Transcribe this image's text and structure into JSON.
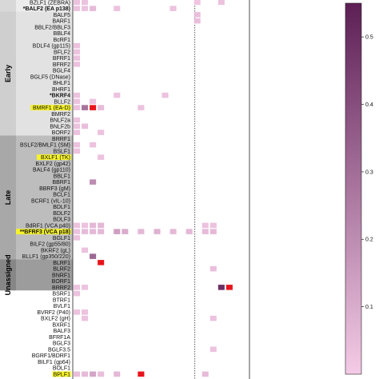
{
  "chart_data": {
    "type": "heatmap",
    "groups": [
      {
        "name": "",
        "from": 0,
        "to": 2
      },
      {
        "name": "Early",
        "from": 2,
        "to": 22
      },
      {
        "name": "Late",
        "from": 22,
        "to": 42
      },
      {
        "name": "Unassigned",
        "from": 42,
        "to": 47
      }
    ],
    "rows": [
      "BZLF1 (ZEBRA)",
      "*BALF2 (EA p138)",
      "BALF5",
      "BARF1",
      "BBLF2/BBLF3",
      "BBLF4",
      "BcRF1",
      "BDLF4 (gp115)",
      "BFLF2",
      "BFRF1",
      "BFRF2",
      "BGLF4",
      "BGLF5 (DNase)",
      "BHLF1",
      "BHRF1",
      "*BKRF4",
      "BLLF2",
      "BMRF1 (EA-D)",
      "BMRF2",
      "BNLF2a",
      "BNLF2b",
      "BORF2",
      "BRRF1",
      "BSLF2/BMLF1 (SM)",
      "BSLF1",
      "BXLF1 (TK)",
      "BXLF2 (gp42)",
      "BALF4 (gp110)",
      "BBLF1",
      "BBRF1",
      "BBRF3 (gM)",
      "BCLF1",
      "BCRF1 (vIL-10)",
      "BDLF1",
      "BDLF2",
      "BDLF3",
      "BdRF1 (VCA p40)",
      "**BFRF3 (VCA p18)",
      "BGLF1",
      "BILF2 (gp55/80)",
      "BKRF2 (gL)",
      "BLLF1 (gp350/220)",
      "BLRF1",
      "BLRF2",
      "BNRF1",
      "BORF1",
      "BRRF2",
      "BSRF1",
      "BTRF1",
      "BVLF1",
      "BVRF2 (P40)",
      "BXLF2 (gH)",
      "BXRF1",
      "BALF3",
      "BFRF1A",
      "BGLF3",
      "BGLF3.5",
      "BGRF1/BDRF1",
      "BILF1 (gp64)",
      "BOLF1",
      "BPLF1"
    ],
    "highlighted_rows": [
      "BMRF1 (EA-D)",
      "BXLF1 (TK)",
      "**BFRF3 (VCA p18)",
      "BPLF1"
    ],
    "bold_rows": [
      "*BALF2 (EA p138)",
      "*BKRF4",
      "**BFRF3 (VCA p18)"
    ],
    "n_columns": 22,
    "separator_after_column": 15,
    "colorbar": {
      "min": 0,
      "max": 0.55,
      "ticks": [
        0.1,
        0.2,
        0.3,
        0.4,
        0.5
      ],
      "low_color": "#f4cbe6",
      "high_color": "#5d1f55",
      "outlier_color": "#e8141b"
    },
    "cells": [
      {
        "row": 0,
        "col": 0,
        "value": 0.03
      },
      {
        "row": 0,
        "col": 1,
        "value": 0.03
      },
      {
        "row": 0,
        "col": 15,
        "value": 0.02
      },
      {
        "row": 0,
        "col": 18,
        "value": 0.03
      },
      {
        "row": 1,
        "col": 0,
        "value": 0.03
      },
      {
        "row": 1,
        "col": 1,
        "value": 0.03
      },
      {
        "row": 1,
        "col": 2,
        "value": 0.05
      },
      {
        "row": 1,
        "col": 5,
        "value": 0.03
      },
      {
        "row": 1,
        "col": 12,
        "value": 0.03
      },
      {
        "row": 2,
        "col": 15,
        "value": 0.04
      },
      {
        "row": 3,
        "col": 15,
        "value": 0.04
      },
      {
        "row": 7,
        "col": 0,
        "value": 0.03
      },
      {
        "row": 8,
        "col": 0,
        "value": 0.03
      },
      {
        "row": 9,
        "col": 0,
        "value": 0.03
      },
      {
        "row": 10,
        "col": 0,
        "value": 0.03
      },
      {
        "row": 15,
        "col": 0,
        "value": 0.03
      },
      {
        "row": 15,
        "col": 5,
        "value": 0.03
      },
      {
        "row": 15,
        "col": 11,
        "value": 0.03
      },
      {
        "row": 16,
        "col": 0,
        "value": 0.03
      },
      {
        "row": 16,
        "col": 2,
        "value": 0.03
      },
      {
        "row": 17,
        "col": 0,
        "value": 0.03
      },
      {
        "row": 17,
        "col": 1,
        "value": 0.28
      },
      {
        "row": 17,
        "col": 2,
        "value": 0.7
      },
      {
        "row": 17,
        "col": 3,
        "value": 0.05
      },
      {
        "row": 17,
        "col": 8,
        "value": 0.03
      },
      {
        "row": 19,
        "col": 0,
        "value": 0.03
      },
      {
        "row": 20,
        "col": 0,
        "value": 0.03
      },
      {
        "row": 20,
        "col": 1,
        "value": 0.04
      },
      {
        "row": 21,
        "col": 0,
        "value": 0.03
      },
      {
        "row": 21,
        "col": 3,
        "value": 0.03
      },
      {
        "row": 23,
        "col": 0,
        "value": 0.03
      },
      {
        "row": 23,
        "col": 2,
        "value": 0.03
      },
      {
        "row": 24,
        "col": 0,
        "value": 0.03
      },
      {
        "row": 25,
        "col": 3,
        "value": 0.03
      },
      {
        "row": 29,
        "col": 2,
        "value": 0.2
      },
      {
        "row": 36,
        "col": 0,
        "value": 0.03
      },
      {
        "row": 36,
        "col": 1,
        "value": 0.03
      },
      {
        "row": 36,
        "col": 2,
        "value": 0.06
      },
      {
        "row": 36,
        "col": 3,
        "value": 0.06
      },
      {
        "row": 36,
        "col": 16,
        "value": 0.03
      },
      {
        "row": 36,
        "col": 17,
        "value": 0.03
      },
      {
        "row": 37,
        "col": 0,
        "value": 0.03
      },
      {
        "row": 37,
        "col": 1,
        "value": 0.05
      },
      {
        "row": 37,
        "col": 2,
        "value": 0.06
      },
      {
        "row": 37,
        "col": 3,
        "value": 0.06
      },
      {
        "row": 37,
        "col": 5,
        "value": 0.14
      },
      {
        "row": 37,
        "col": 6,
        "value": 0.1
      },
      {
        "row": 37,
        "col": 8,
        "value": 0.06
      },
      {
        "row": 37,
        "col": 10,
        "value": 0.08
      },
      {
        "row": 37,
        "col": 12,
        "value": 0.06
      },
      {
        "row": 37,
        "col": 14,
        "value": 0.06
      },
      {
        "row": 37,
        "col": 16,
        "value": 0.05
      },
      {
        "row": 37,
        "col": 17,
        "value": 0.06
      },
      {
        "row": 38,
        "col": 0,
        "value": 0.03
      },
      {
        "row": 40,
        "col": 1,
        "value": 0.03
      },
      {
        "row": 41,
        "col": 2,
        "value": 0.32
      },
      {
        "row": 42,
        "col": 3,
        "value": 0.7
      },
      {
        "row": 43,
        "col": 17,
        "value": 0.04
      },
      {
        "row": 46,
        "col": 0,
        "value": 0.03
      },
      {
        "row": 46,
        "col": 1,
        "value": 0.03
      },
      {
        "row": 46,
        "col": 18,
        "value": 0.5
      },
      {
        "row": 46,
        "col": 19,
        "value": 0.7
      },
      {
        "row": 47,
        "col": 0,
        "value": 0.03
      },
      {
        "row": 50,
        "col": 0,
        "value": 0.03
      },
      {
        "row": 50,
        "col": 1,
        "value": 0.03
      },
      {
        "row": 51,
        "col": 1,
        "value": 0.03
      },
      {
        "row": 51,
        "col": 17,
        "value": 0.03
      },
      {
        "row": 56,
        "col": 17,
        "value": 0.03
      },
      {
        "row": 60,
        "col": 0,
        "value": 0.04
      },
      {
        "row": 60,
        "col": 1,
        "value": 0.05
      },
      {
        "row": 60,
        "col": 2,
        "value": 0.12
      },
      {
        "row": 60,
        "col": 3,
        "value": 0.04
      },
      {
        "row": 60,
        "col": 5,
        "value": 0.06
      },
      {
        "row": 60,
        "col": 8,
        "value": 0.7
      },
      {
        "row": 60,
        "col": 16,
        "value": 0.05
      }
    ]
  }
}
